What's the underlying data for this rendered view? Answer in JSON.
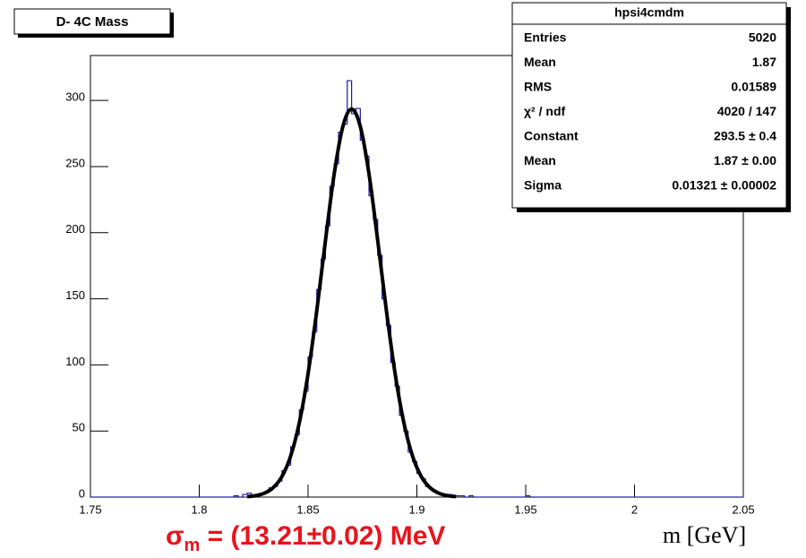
{
  "chart_data": {
    "type": "histogram",
    "title": "D- 4C Mass",
    "x_label": "m [GeV]",
    "annotation": {
      "symbol": "σ",
      "subscript": "m",
      "text": " = (13.21±0.02) MeV"
    },
    "color": "#1a1aa8",
    "xlim": [
      1.75,
      2.05
    ],
    "ylim": [
      0,
      334
    ],
    "xticks": [
      1.75,
      1.8,
      1.85,
      1.9,
      1.95,
      2,
      2.05
    ],
    "yticks": [
      0,
      50,
      100,
      150,
      200,
      250,
      300
    ],
    "bins": [
      1.75,
      1.752,
      1.754,
      1.756,
      1.758,
      1.76,
      1.762,
      1.764,
      1.766,
      1.768,
      1.77,
      1.772,
      1.774,
      1.776,
      1.778,
      1.78,
      1.782,
      1.784,
      1.786,
      1.788,
      1.79,
      1.792,
      1.794,
      1.796,
      1.798,
      1.8,
      1.802,
      1.804,
      1.806,
      1.808,
      1.81,
      1.812,
      1.814,
      1.816,
      1.818,
      1.82,
      1.822,
      1.824,
      1.826,
      1.828,
      1.83,
      1.832,
      1.834,
      1.836,
      1.838,
      1.84,
      1.842,
      1.844,
      1.846,
      1.848,
      1.85,
      1.852,
      1.854,
      1.856,
      1.858,
      1.86,
      1.862,
      1.864,
      1.866,
      1.868,
      1.87,
      1.872,
      1.874,
      1.876,
      1.878,
      1.88,
      1.882,
      1.884,
      1.886,
      1.888,
      1.89,
      1.892,
      1.894,
      1.896,
      1.898,
      1.9,
      1.902,
      1.904,
      1.906,
      1.908,
      1.91,
      1.912,
      1.914,
      1.916,
      1.918,
      1.92,
      1.922,
      1.924,
      1.926,
      1.928,
      1.93,
      1.932,
      1.934,
      1.936,
      1.938,
      1.94,
      1.942,
      1.944,
      1.946,
      1.948,
      1.95,
      1.952,
      1.954,
      1.956,
      1.958,
      1.96,
      1.962,
      1.964,
      1.966,
      1.968,
      1.97,
      1.972,
      1.974,
      1.976,
      1.978,
      1.98,
      1.982,
      1.984,
      1.986,
      1.988,
      1.99,
      1.992,
      1.994,
      1.996,
      1.998,
      2,
      2.002,
      2.004,
      2.006,
      2.008,
      2.01,
      2.012,
      2.014,
      2.016,
      2.018,
      2.02,
      2.022,
      2.024,
      2.026,
      2.028,
      2.03,
      2.032,
      2.034,
      2.036,
      2.038,
      2.04,
      2.042,
      2.044,
      2.046,
      2.048,
      2.05
    ],
    "values": [
      0,
      0,
      0,
      0,
      0,
      0,
      0,
      0,
      0,
      0,
      0,
      0,
      0,
      0,
      0,
      0,
      0,
      0,
      0,
      0,
      0,
      0,
      0,
      0,
      0,
      0,
      0,
      0,
      0,
      0,
      0,
      0,
      0,
      1,
      0,
      2,
      3,
      1,
      2,
      3,
      4,
      7,
      8,
      12,
      20,
      24,
      38,
      47,
      66,
      80,
      106,
      125,
      157,
      180,
      205,
      235,
      252,
      276,
      282,
      315,
      290,
      294,
      270,
      258,
      228,
      210,
      183,
      150,
      130,
      102,
      84,
      62,
      50,
      34,
      27,
      18,
      14,
      8,
      6,
      4,
      3,
      2,
      2,
      1,
      1,
      1,
      0,
      1,
      0,
      0,
      0,
      0,
      0,
      0,
      0,
      0,
      0,
      0,
      0,
      0,
      1,
      0,
      0,
      0,
      0,
      0,
      0,
      0,
      0,
      0,
      0,
      0,
      0,
      0,
      0,
      0,
      0,
      0,
      0,
      0,
      0,
      0,
      0,
      0,
      0,
      0,
      0,
      0,
      0,
      0,
      0,
      0,
      0,
      0,
      0,
      0,
      0,
      0,
      0,
      0,
      0,
      0,
      0,
      0,
      0,
      0,
      0,
      0,
      0,
      0
    ],
    "fit": {
      "color": "#000000",
      "x": [
        1.822,
        1.826,
        1.83,
        1.834,
        1.838,
        1.842,
        1.846,
        1.85,
        1.854,
        1.858,
        1.862,
        1.866,
        1.87,
        1.874,
        1.878,
        1.882,
        1.886,
        1.89,
        1.894,
        1.898,
        1.902,
        1.906,
        1.91,
        1.914,
        1.918
      ],
      "values": [
        0.4,
        1.1,
        3.0,
        7.2,
        15.6,
        31.1,
        56.4,
        93.4,
        141.0,
        194.2,
        244.4,
        280.4,
        293.5,
        280.4,
        244.4,
        194.2,
        141.0,
        93.4,
        56.4,
        31.1,
        15.6,
        7.2,
        3.0,
        1.1,
        0.4
      ]
    },
    "stats": {
      "title": "hpsi4cmdm",
      "rows": [
        [
          "Entries",
          "5020"
        ],
        [
          "Mean",
          "1.87"
        ],
        [
          "RMS",
          "0.01589"
        ],
        [
          "χ² / ndf",
          "4020 / 147"
        ],
        [
          "Constant",
          "293.5 ± 0.4"
        ],
        [
          "Mean",
          "1.87 ± 0.00"
        ],
        [
          "Sigma",
          "0.01321 ± 0.00002"
        ]
      ]
    }
  }
}
